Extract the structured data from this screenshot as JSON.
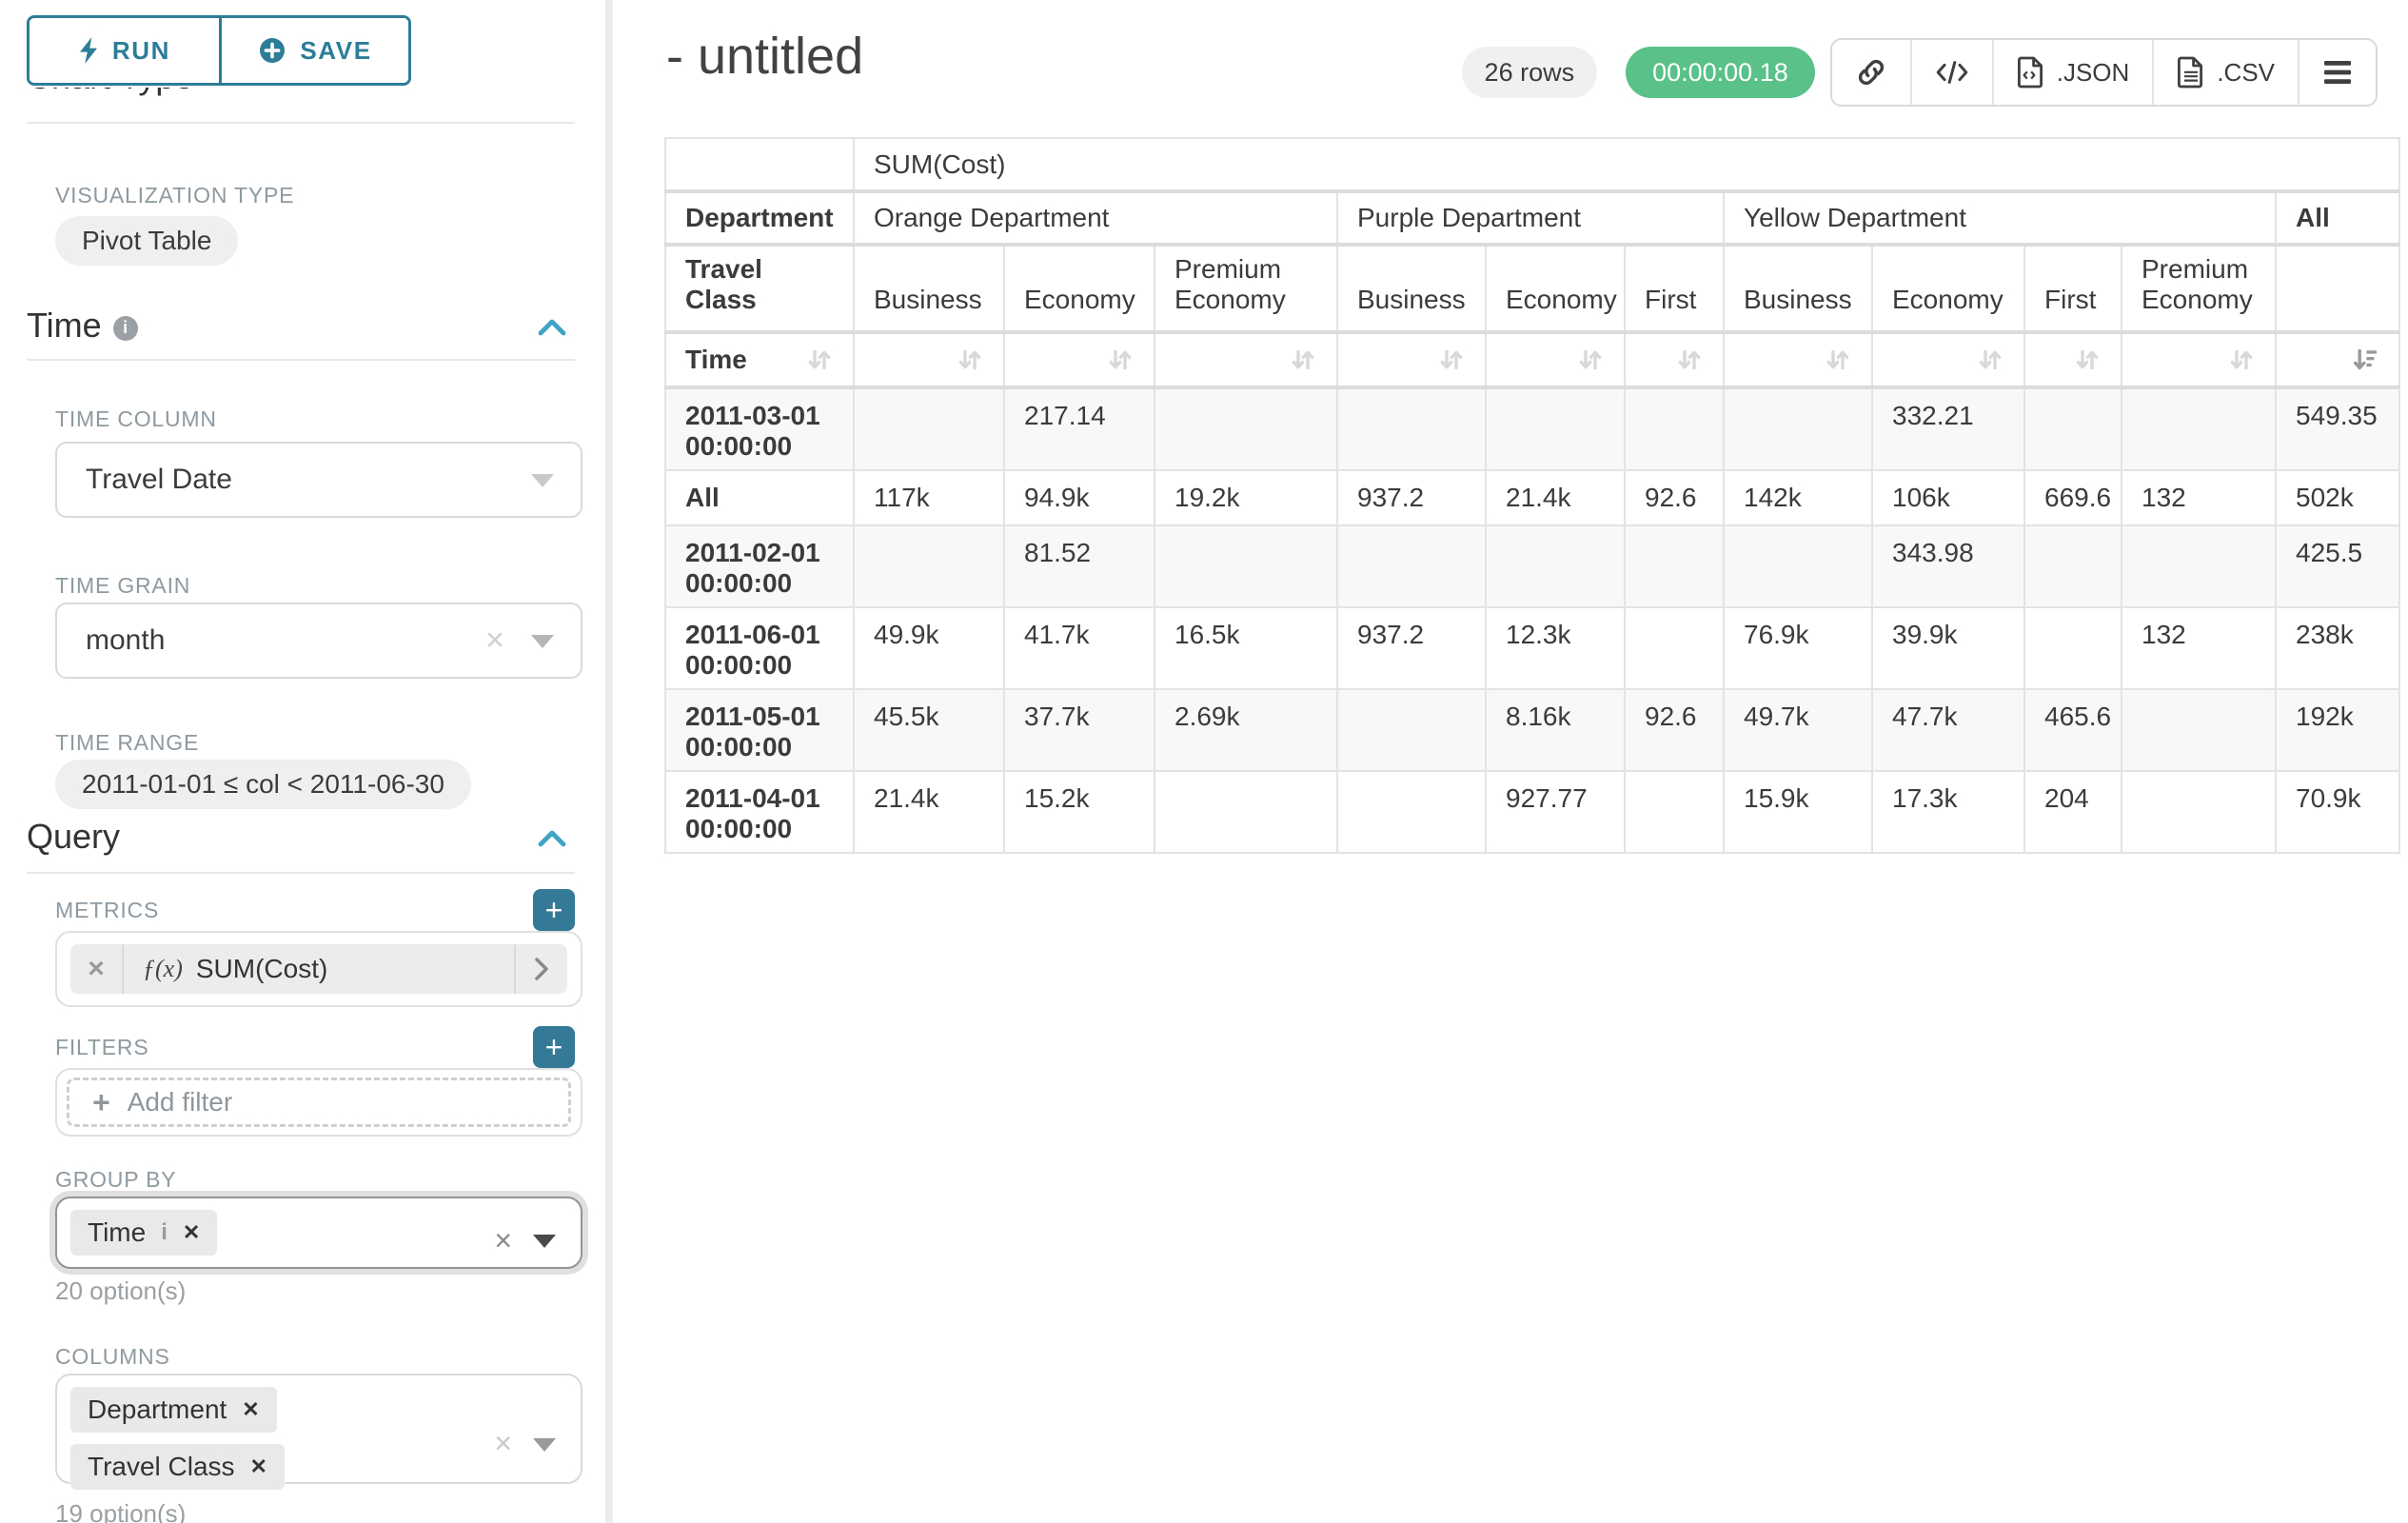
{
  "colors": {
    "accent": "#2e7d98",
    "add_button": "#347a96",
    "section_chevron": "#41a3c6",
    "timer_green": "#5ac189",
    "pill_gray": "#efefef",
    "border_light": "#d9d9d9",
    "table_border": "#e3e3e3"
  },
  "toolbar": {
    "run_label": "RUN",
    "save_label": "SAVE"
  },
  "sidebar": {
    "chart_type_heading": "Chart Type",
    "visualization": {
      "label": "VISUALIZATION TYPE",
      "value": "Pivot Table"
    },
    "time": {
      "heading": "Time",
      "column_label": "TIME COLUMN",
      "column_value": "Travel Date",
      "grain_label": "TIME GRAIN",
      "grain_value": "month",
      "range_label": "TIME RANGE",
      "range_value": "2011-01-01 ≤ col < 2011-06-30"
    },
    "query": {
      "heading": "Query",
      "metrics_label": "METRICS",
      "metric_fx": "ƒ(x)",
      "metric_value": "SUM(Cost)",
      "filters_label": "FILTERS",
      "add_filter_label": "Add filter",
      "group_by_label": "GROUP BY",
      "group_by_tags": [
        "Time"
      ],
      "group_by_options": "20 option(s)",
      "columns_label": "COLUMNS",
      "columns_tags": [
        "Department",
        "Travel Class"
      ],
      "columns_options": "19 option(s)"
    }
  },
  "header": {
    "title": "- untitled",
    "rows_badge": "26 rows",
    "timer": "00:00:00.18",
    "export_json_label": ".JSON",
    "export_csv_label": ".CSV"
  },
  "chart_data": {
    "type": "table",
    "title": "SUM(Cost)",
    "metric_header": "SUM(Cost)",
    "col_dim_label": "Department",
    "col_subdim_label": "Travel Class",
    "row_dim_label": "Time",
    "col_groups": [
      {
        "name": "Orange Department",
        "children": [
          "Business",
          "Economy",
          "Premium Economy"
        ]
      },
      {
        "name": "Purple Department",
        "children": [
          "Business",
          "Economy",
          "First"
        ]
      },
      {
        "name": "Yellow Department",
        "children": [
          "Business",
          "Economy",
          "First",
          "Premium Economy"
        ]
      },
      {
        "name": "All",
        "children": [
          ""
        ]
      }
    ],
    "sorted_column": "All",
    "sort_direction": "desc",
    "rows": [
      {
        "label": "2011-03-01 00:00:00",
        "values": [
          "",
          "217.14",
          "",
          "",
          "",
          "",
          "",
          "332.21",
          "",
          "",
          "549.35"
        ]
      },
      {
        "label": "All",
        "values": [
          "117k",
          "94.9k",
          "19.2k",
          "937.2",
          "21.4k",
          "92.6",
          "142k",
          "106k",
          "669.6",
          "132",
          "502k"
        ]
      },
      {
        "label": "2011-02-01 00:00:00",
        "values": [
          "",
          "81.52",
          "",
          "",
          "",
          "",
          "",
          "343.98",
          "",
          "",
          "425.5"
        ]
      },
      {
        "label": "2011-06-01 00:00:00",
        "values": [
          "49.9k",
          "41.7k",
          "16.5k",
          "937.2",
          "12.3k",
          "",
          "76.9k",
          "39.9k",
          "",
          "132",
          "238k"
        ]
      },
      {
        "label": "2011-05-01 00:00:00",
        "values": [
          "45.5k",
          "37.7k",
          "2.69k",
          "",
          "8.16k",
          "92.6",
          "49.7k",
          "47.7k",
          "465.6",
          "",
          "192k"
        ]
      },
      {
        "label": "2011-04-01 00:00:00",
        "values": [
          "21.4k",
          "15.2k",
          "",
          "",
          "927.77",
          "",
          "15.9k",
          "17.3k",
          "204",
          "",
          "70.9k"
        ]
      }
    ]
  }
}
